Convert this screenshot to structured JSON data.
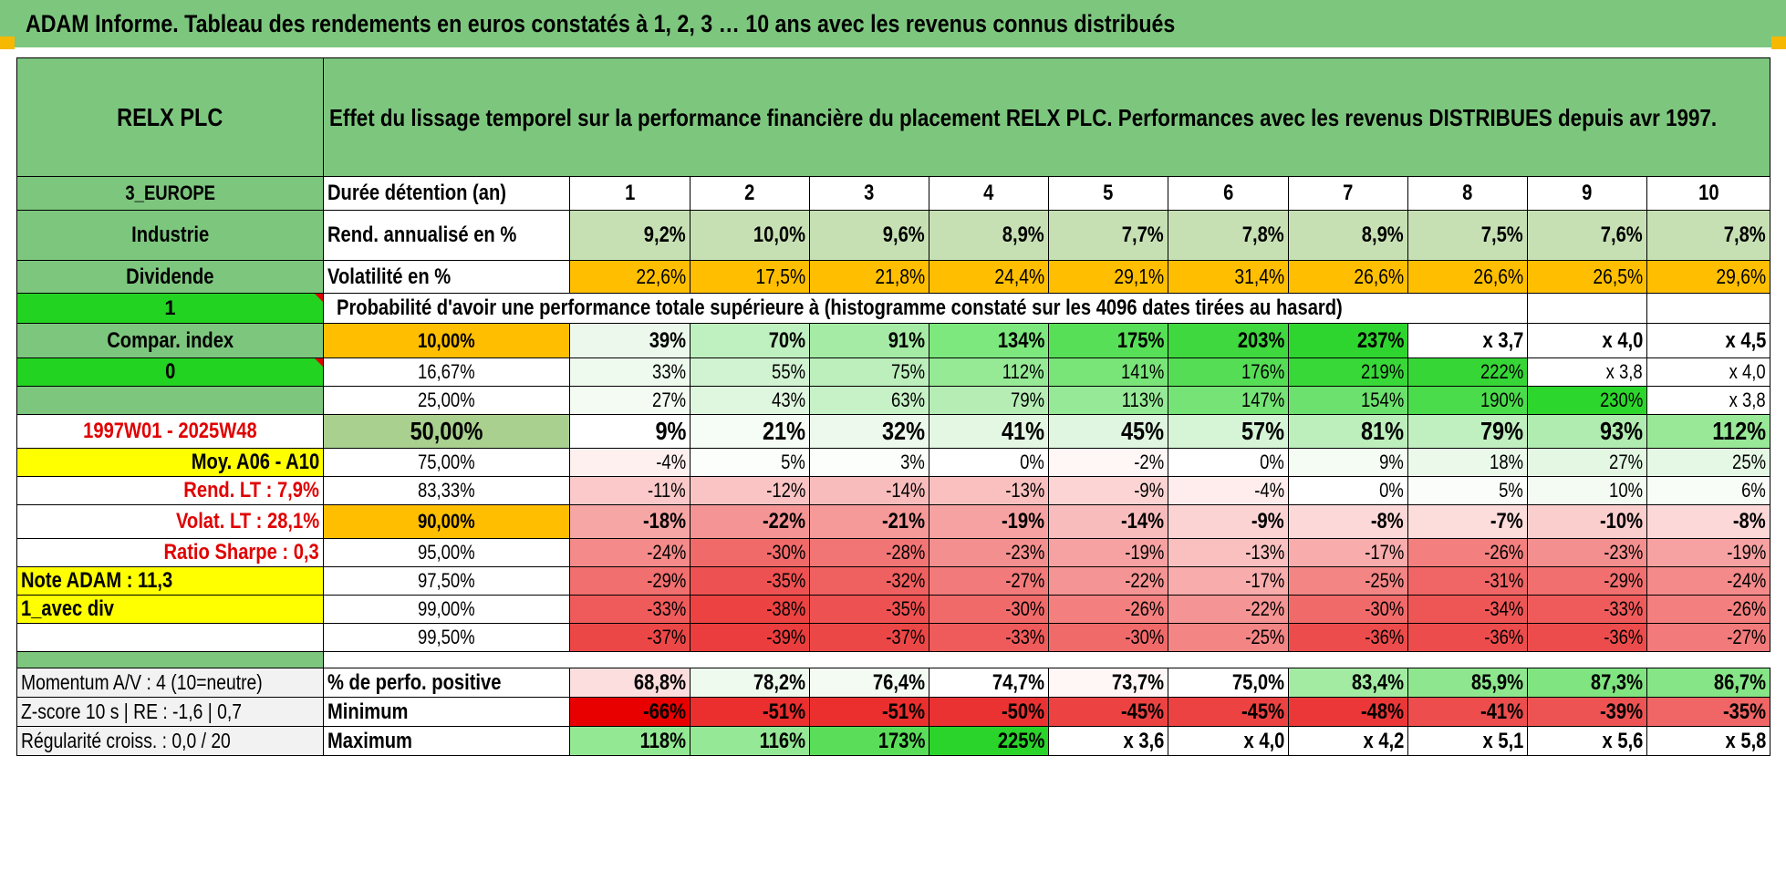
{
  "title": "ADAM Informe. Tableau des rendements en euros constatés à 1, 2, 3 … 10 ans avec les revenus connus distribués",
  "header": {
    "company": "RELX PLC",
    "description": "Effet du lissage temporel sur la performance financière du placement RELX PLC. Performances avec les revenus DISTRIBUES depuis avr 1997."
  },
  "side": {
    "region": "3_EUROPE",
    "sector": "Industrie",
    "dividend": "Dividende",
    "flag_one": "1",
    "compar_index": "Compar. index",
    "flag_zero": "0",
    "period": "1997W01 - 2025W48",
    "moy": "Moy. A06 - A10",
    "rend_lt": "Rend. LT :    7,9%",
    "volat_lt": "Volat. LT :    28,1%",
    "sharpe": "Ratio Sharpe :    0,3",
    "note": "Note ADAM : 11,3",
    "avec_div": "1_avec div"
  },
  "duration": {
    "label": "Durée détention (an)",
    "years": [
      "1",
      "2",
      "3",
      "4",
      "5",
      "6",
      "7",
      "8",
      "9",
      "10"
    ]
  },
  "rend": {
    "label": "Rend. annualisé en %",
    "values": [
      "9,2%",
      "10,0%",
      "9,6%",
      "8,9%",
      "7,7%",
      "7,8%",
      "8,9%",
      "7,5%",
      "7,6%",
      "7,8%"
    ],
    "colors": [
      "#c6e0b4",
      "#c6e0b4",
      "#c6e0b4",
      "#c6e0b4",
      "#c6e0b4",
      "#c6e0b4",
      "#c6e0b4",
      "#c6e0b4",
      "#c6e0b4",
      "#c6e0b4"
    ]
  },
  "vol": {
    "label": "Volatilité en %",
    "values": [
      "22,6%",
      "17,5%",
      "21,8%",
      "24,4%",
      "29,1%",
      "31,4%",
      "26,6%",
      "26,6%",
      "26,5%",
      "29,6%"
    ],
    "colors": [
      "#ffbf00",
      "#ffbf00",
      "#ffbf00",
      "#ffbf00",
      "#ffbf00",
      "#ffbf00",
      "#ffbf00",
      "#ffbf00",
      "#ffbf00",
      "#ffbf00"
    ]
  },
  "prob_title": "Probabilité d'avoir une performance totale supérieure à (histogramme constaté sur les 4096 dates tirées au hasard)",
  "prob_rows": [
    {
      "pct": "10,00%",
      "pct_bg": "#ffbf00",
      "bold": true,
      "big": false,
      "values": [
        "39%",
        "70%",
        "91%",
        "134%",
        "175%",
        "203%",
        "237%",
        "x 3,7",
        "x 4,0",
        "x 4,5"
      ],
      "colors": [
        "#ebf8eb",
        "#bff0bf",
        "#a5eba5",
        "#7de87d",
        "#57e057",
        "#3fd83f",
        "#2fd52f",
        "#ffffff",
        "#ffffff",
        "#ffffff"
      ]
    },
    {
      "pct": "16,67%",
      "pct_bg": "#ffffff",
      "bold": false,
      "big": false,
      "values": [
        "33%",
        "55%",
        "75%",
        "112%",
        "141%",
        "176%",
        "219%",
        "222%",
        "x 3,8",
        "x 4,0"
      ],
      "colors": [
        "#effaef",
        "#d2f3d2",
        "#bdefbd",
        "#96ea96",
        "#79e579",
        "#55de55",
        "#38d838",
        "#36d636",
        "#ffffff",
        "#ffffff"
      ]
    },
    {
      "pct": "25,00%",
      "pct_bg": "#ffffff",
      "bold": false,
      "big": false,
      "values": [
        "27%",
        "43%",
        "63%",
        "79%",
        "113%",
        "147%",
        "154%",
        "190%",
        "230%",
        "x 3,8"
      ],
      "colors": [
        "#f3fbf3",
        "#dff6df",
        "#c7f1c7",
        "#b5edb5",
        "#96e996",
        "#75e375",
        "#6de16d",
        "#4bdc4b",
        "#2dd62d",
        "#ffffff"
      ]
    },
    {
      "pct": "50,00%",
      "pct_bg": "#a9d08e",
      "bold": true,
      "big": true,
      "values": [
        "9%",
        "21%",
        "32%",
        "41%",
        "45%",
        "57%",
        "81%",
        "79%",
        "93%",
        "112%"
      ],
      "colors": [
        "#ffffff",
        "#f6fcf6",
        "#ecf9ec",
        "#e3f7e3",
        "#e0f6e0",
        "#d6f4d6",
        "#bdefbd",
        "#c0efc0",
        "#b0ecb0",
        "#98e898"
      ]
    },
    {
      "pct": "75,00%",
      "pct_bg": "#ffffff",
      "bold": false,
      "big": false,
      "values": [
        "-4%",
        "5%",
        "3%",
        "0%",
        "-2%",
        "0%",
        "9%",
        "18%",
        "27%",
        "25%"
      ],
      "colors": [
        "#fff0f0",
        "#fbfefb",
        "#fcfefc",
        "#ffffff",
        "#fff6f6",
        "#ffffff",
        "#f4fcf4",
        "#ebf9eb",
        "#e3f7e3",
        "#e5f7e5"
      ]
    },
    {
      "pct": "83,33%",
      "pct_bg": "#ffffff",
      "bold": false,
      "big": false,
      "values": [
        "-11%",
        "-12%",
        "-14%",
        "-13%",
        "-9%",
        "-4%",
        "0%",
        "5%",
        "10%",
        "6%"
      ],
      "colors": [
        "#fbc9c9",
        "#fac4c4",
        "#f9bcbc",
        "#fac0c0",
        "#fcd4d4",
        "#ffeded",
        "#ffffff",
        "#fafdfa",
        "#f3fbf3",
        "#f8fdf8"
      ]
    },
    {
      "pct": "90,00%",
      "pct_bg": "#ffbf00",
      "bold": true,
      "big": false,
      "values": [
        "-18%",
        "-22%",
        "-21%",
        "-19%",
        "-14%",
        "-9%",
        "-8%",
        "-7%",
        "-10%",
        "-8%"
      ],
      "colors": [
        "#f7a6a6",
        "#f59494",
        "#f69999",
        "#f7a2a2",
        "#f9bcbc",
        "#fcd3d3",
        "#fdd8d8",
        "#fddcdc",
        "#fbcece",
        "#fdd8d8"
      ]
    },
    {
      "pct": "95,00%",
      "pct_bg": "#ffffff",
      "bold": false,
      "big": false,
      "values": [
        "-24%",
        "-30%",
        "-28%",
        "-23%",
        "-19%",
        "-13%",
        "-17%",
        "-26%",
        "-23%",
        "-19%"
      ],
      "colors": [
        "#f48a8a",
        "#f16a6a",
        "#f27575",
        "#f48f8f",
        "#f7a2a2",
        "#fac0c0",
        "#f8acac",
        "#f37f7f",
        "#f48f8f",
        "#f7a2a2"
      ]
    },
    {
      "pct": "97,50%",
      "pct_bg": "#ffffff",
      "bold": false,
      "big": false,
      "values": [
        "-29%",
        "-35%",
        "-32%",
        "-27%",
        "-22%",
        "-17%",
        "-25%",
        "-31%",
        "-29%",
        "-24%"
      ],
      "colors": [
        "#f16f6f",
        "#ee5151",
        "#ef6060",
        "#f27a7a",
        "#f59494",
        "#f8acac",
        "#f38585",
        "#f06565",
        "#f16f6f",
        "#f48a8a"
      ]
    },
    {
      "pct": "99,00%",
      "pct_bg": "#ffffff",
      "bold": false,
      "big": false,
      "values": [
        "-33%",
        "-38%",
        "-35%",
        "-30%",
        "-26%",
        "-22%",
        "-30%",
        "-34%",
        "-33%",
        "-26%"
      ],
      "colors": [
        "#ef5b5b",
        "#ec4242",
        "#ee5151",
        "#f16a6a",
        "#f37f7f",
        "#f59494",
        "#f16a6a",
        "#ee5656",
        "#ef5b5b",
        "#f37f7f"
      ]
    },
    {
      "pct": "99,50%",
      "pct_bg": "#ffffff",
      "bold": false,
      "big": false,
      "values": [
        "-37%",
        "-39%",
        "-37%",
        "-33%",
        "-30%",
        "-25%",
        "-36%",
        "-36%",
        "-36%",
        "-27%"
      ],
      "colors": [
        "#ec4747",
        "#eb3d3d",
        "#ec4747",
        "#ef5b5b",
        "#f16a6a",
        "#f38585",
        "#ed4c4c",
        "#ed4c4c",
        "#ed4c4c",
        "#f27a7a"
      ]
    }
  ],
  "bottom": {
    "momentum": "Momentum A/V : 4 (10=neutre)",
    "zscore": "Z-score 10 s | RE : -1,6 | 0,7",
    "regularite": "Régularité croiss. : 0,0 / 20",
    "positive": {
      "label": "% de perfo. positive",
      "values": [
        "68,8%",
        "78,2%",
        "76,4%",
        "74,7%",
        "73,7%",
        "75,0%",
        "83,4%",
        "85,9%",
        "87,3%",
        "86,7%"
      ],
      "colors": [
        "#fcdede",
        "#eefaee",
        "#f3fbf3",
        "#ffffff",
        "#fff6f6",
        "#ffffff",
        "#a3eba3",
        "#8ee78e",
        "#80e480",
        "#86e586"
      ]
    },
    "minimum": {
      "label": "Minimum",
      "values": [
        "-66%",
        "-51%",
        "-51%",
        "-50%",
        "-45%",
        "-45%",
        "-48%",
        "-41%",
        "-39%",
        "-35%"
      ],
      "colors": [
        "#e80000",
        "#eb2e2e",
        "#eb2e2e",
        "#eb3232",
        "#ec4242",
        "#ec4242",
        "#eb3737",
        "#ed4d4d",
        "#ee5353",
        "#f06565"
      ]
    },
    "maximum": {
      "label": "Maximum",
      "values": [
        "118%",
        "116%",
        "173%",
        "225%",
        "x 3,6",
        "x 4,0",
        "x 4,2",
        "x 5,1",
        "x 5,6",
        "x 5,8"
      ],
      "colors": [
        "#93e893",
        "#95e895",
        "#5ade5a",
        "#2ad42a",
        "#ffffff",
        "#ffffff",
        "#ffffff",
        "#ffffff",
        "#ffffff",
        "#ffffff"
      ]
    }
  },
  "colors": {
    "header_green": "#7dc67e",
    "bright_green": "#22d322",
    "yellow": "#ffff00",
    "orange": "#ffbf00",
    "red_text": "#e00000"
  }
}
